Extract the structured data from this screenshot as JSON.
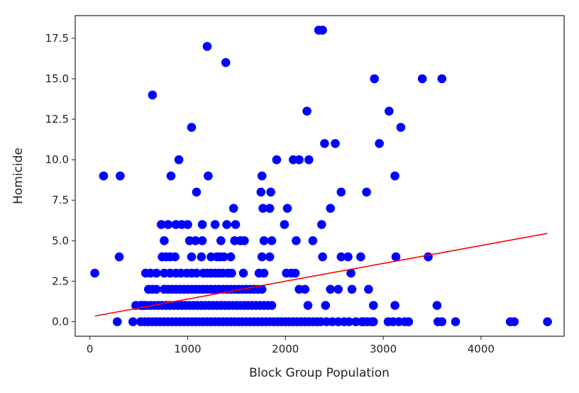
{
  "chart_data": {
    "type": "scatter",
    "xlabel": "Block Group Population",
    "ylabel": "Homicide",
    "xlim": [
      -150,
      4850
    ],
    "ylim": [
      -0.9,
      18.9
    ],
    "x_ticks": [
      0,
      1000,
      2000,
      3000,
      4000
    ],
    "x_tick_labels": [
      "0",
      "1000",
      "2000",
      "3000",
      "4000"
    ],
    "y_ticks": [
      0,
      2.5,
      5,
      7.5,
      10,
      12.5,
      15,
      17.5
    ],
    "y_tick_labels": [
      "0.0",
      "2.5",
      "5.0",
      "7.5",
      "10.0",
      "12.5",
      "15.0",
      "17.5"
    ],
    "grid": false,
    "legend": "none",
    "colors": {
      "points": "#0000ff",
      "fit_line": "#ff0000",
      "axes": "#222222"
    },
    "series": [
      {
        "kind": "points",
        "x": [
          50,
          280,
          440,
          520,
          560,
          600,
          640,
          680,
          720,
          760,
          800,
          840,
          880,
          920,
          960,
          1000,
          1040,
          1080,
          1120,
          1160,
          1200,
          1240,
          1280,
          1320,
          1360,
          1400,
          1440,
          1480,
          1520,
          1560,
          1600,
          1640,
          1680,
          1720,
          1760,
          1800,
          1840,
          1880,
          1920,
          1960,
          2000,
          2040,
          2080,
          2120,
          2160,
          2200,
          2240,
          2280,
          2320,
          2360,
          2420,
          2480,
          2540,
          2600,
          2650,
          2720,
          2780,
          2800,
          2840,
          2880,
          2900,
          3050,
          3100,
          3160,
          3220,
          3260,
          3560,
          3600,
          3740,
          4300,
          4340,
          4680,
          470,
          520,
          540,
          560,
          580,
          620,
          660,
          700,
          740,
          780,
          820,
          860,
          900,
          940,
          980,
          1020,
          1060,
          1100,
          1140,
          1180,
          1220,
          1260,
          1300,
          1340,
          1380,
          1420,
          1460,
          1500,
          1540,
          1580,
          1620,
          1660,
          1700,
          1740,
          1780,
          1820,
          1860,
          2230,
          2410,
          2900,
          3120,
          3550,
          600,
          640,
          680,
          760,
          800,
          840,
          880,
          920,
          960,
          1000,
          1040,
          1080,
          1120,
          1160,
          1200,
          1240,
          1280,
          1320,
          1360,
          1400,
          1440,
          1480,
          1520,
          1560,
          1600,
          1640,
          1680,
          1720,
          1760,
          2140,
          2200,
          2460,
          2540,
          2680,
          2850,
          570,
          620,
          680,
          760,
          820,
          880,
          930,
          990,
          1040,
          1090,
          1160,
          1200,
          1240,
          1280,
          1320,
          1360,
          1410,
          1450,
          1570,
          1730,
          1780,
          2010,
          2060,
          2100,
          2670,
          300,
          740,
          780,
          820,
          870,
          1040,
          1140,
          1240,
          1300,
          1330,
          1370,
          1440,
          1760,
          1840,
          2380,
          2570,
          2640,
          2770,
          3130,
          3460,
          760,
          1020,
          1080,
          1150,
          1340,
          1480,
          1540,
          1580,
          1780,
          1860,
          2110,
          2280,
          730,
          800,
          880,
          940,
          1000,
          1150,
          1280,
          1400,
          1490,
          1990,
          2370,
          1470,
          1770,
          1840,
          2020,
          2460,
          1090,
          1750,
          1850,
          2570,
          2830,
          140,
          310,
          830,
          1210,
          1760,
          910,
          1910,
          2080,
          2140,
          2240,
          3120,
          2400,
          2510,
          2960,
          1040,
          3180,
          2220,
          3060,
          2910,
          3400,
          3600,
          1390,
          1200,
          2340,
          2380,
          640
        ],
        "y": [
          3,
          0,
          0,
          0,
          0,
          0,
          0,
          0,
          0,
          0,
          0,
          0,
          0,
          0,
          0,
          0,
          0,
          0,
          0,
          0,
          0,
          0,
          0,
          0,
          0,
          0,
          0,
          0,
          0,
          0,
          0,
          0,
          0,
          0,
          0,
          0,
          0,
          0,
          0,
          0,
          0,
          0,
          0,
          0,
          0,
          0,
          0,
          0,
          0,
          0,
          0,
          0,
          0,
          0,
          0,
          0,
          0,
          0,
          0,
          0,
          0,
          0,
          0,
          0,
          0,
          0,
          0,
          0,
          0,
          0,
          0,
          0,
          1,
          1,
          1,
          1,
          1,
          1,
          1,
          1,
          1,
          1,
          1,
          1,
          1,
          1,
          1,
          1,
          1,
          1,
          1,
          1,
          1,
          1,
          1,
          1,
          1,
          1,
          1,
          1,
          1,
          1,
          1,
          1,
          1,
          1,
          1,
          1,
          1,
          1,
          1,
          1,
          1,
          1,
          2,
          2,
          2,
          2,
          2,
          2,
          2,
          2,
          2,
          2,
          2,
          2,
          2,
          2,
          2,
          2,
          2,
          2,
          2,
          2,
          2,
          2,
          2,
          2,
          2,
          2,
          2,
          2,
          2,
          2,
          2,
          2,
          2,
          2,
          2,
          3,
          3,
          3,
          3,
          3,
          3,
          3,
          3,
          3,
          3,
          3,
          3,
          3,
          3,
          3,
          3,
          3,
          3,
          3,
          3,
          3,
          3,
          3,
          3,
          3,
          4,
          4,
          4,
          4,
          4,
          4,
          4,
          4,
          4,
          4,
          4,
          4,
          4,
          4,
          4,
          4,
          4,
          4,
          4,
          4,
          5,
          5,
          5,
          5,
          5,
          5,
          5,
          5,
          5,
          5,
          5,
          5,
          6,
          6,
          6,
          6,
          6,
          6,
          6,
          6,
          6,
          6,
          6,
          7,
          7,
          7,
          7,
          7,
          8,
          8,
          8,
          8,
          8,
          9,
          9,
          9,
          9,
          9,
          10,
          10,
          10,
          10,
          10,
          9,
          11,
          11,
          11,
          12,
          12,
          13,
          13,
          15,
          15,
          15,
          16,
          17,
          18,
          18,
          14
        ]
      },
      {
        "kind": "line",
        "x": [
          50,
          4680
        ],
        "y": [
          0.35,
          5.45
        ]
      }
    ]
  }
}
